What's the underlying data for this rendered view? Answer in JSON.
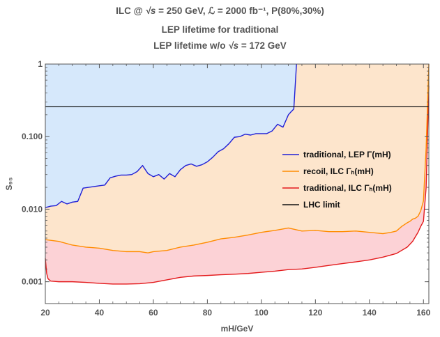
{
  "titles": {
    "line1_a": "ILC @ ",
    "line1_sqrt": "√s",
    "line1_b": " = 250 GeV, ℒ = 2000 fb⁻¹, P(80%,30%)",
    "line2": "LEP lifetime for traditional",
    "line3_a": "LEP lifetime w/o ",
    "line3_sqrt": "√s",
    "line3_b": " = 172 GeV"
  },
  "chart_data": {
    "type": "area",
    "xlabel": "mH/GeV",
    "ylabel": "S₉₅",
    "xlim": [
      20,
      162
    ],
    "ylim": [
      0.0005,
      1
    ],
    "yscale": "log",
    "x_ticks": [
      20,
      40,
      60,
      80,
      100,
      120,
      140,
      160
    ],
    "x_tick_labels": [
      "20",
      "40",
      "60",
      "80",
      "100",
      "120",
      "140",
      "160"
    ],
    "y_ticks": [
      0.001,
      0.01,
      0.1,
      1
    ],
    "y_tick_labels": [
      "0.001",
      "0.010",
      "0.100",
      "1"
    ],
    "legend_position": "right",
    "series": [
      {
        "name": "traditional, LEP Γ(mH)",
        "color": "#1f1fd6",
        "fill": "#d6e8fb",
        "x": [
          20,
          22,
          24,
          26,
          28,
          30,
          32,
          34,
          36,
          38,
          40,
          42,
          44,
          46,
          48,
          50,
          52,
          54,
          56,
          58,
          60,
          62,
          64,
          66,
          68,
          70,
          72,
          74,
          76,
          78,
          80,
          82,
          84,
          86,
          88,
          90,
          92,
          94,
          96,
          98,
          100,
          102,
          104,
          106,
          108,
          110,
          111,
          112,
          113
        ],
        "y": [
          0.0105,
          0.011,
          0.0112,
          0.0128,
          0.0118,
          0.0125,
          0.0128,
          0.0195,
          0.02,
          0.0205,
          0.021,
          0.0215,
          0.027,
          0.0285,
          0.0295,
          0.0295,
          0.03,
          0.033,
          0.04,
          0.031,
          0.028,
          0.03,
          0.026,
          0.031,
          0.028,
          0.035,
          0.04,
          0.042,
          0.039,
          0.041,
          0.045,
          0.052,
          0.062,
          0.068,
          0.08,
          0.098,
          0.1,
          0.108,
          0.105,
          0.11,
          0.11,
          0.11,
          0.12,
          0.148,
          0.135,
          0.2,
          0.22,
          0.24,
          1.0
        ]
      },
      {
        "name": "recoil, ILC Γₕ(mH)",
        "color": "#ff8c00",
        "fill": "#fde5cc",
        "x": [
          20,
          25,
          30,
          35,
          40,
          45,
          50,
          55,
          58,
          60,
          65,
          70,
          75,
          80,
          85,
          90,
          95,
          100,
          105,
          110,
          115,
          120,
          125,
          130,
          135,
          140,
          145,
          148,
          150,
          152,
          154,
          155,
          156,
          157,
          158,
          159,
          160,
          161,
          162
        ],
        "y": [
          0.0038,
          0.0036,
          0.0032,
          0.003,
          0.0029,
          0.0027,
          0.0026,
          0.0026,
          0.0025,
          0.0026,
          0.0027,
          0.003,
          0.0032,
          0.0035,
          0.0039,
          0.0041,
          0.0044,
          0.0048,
          0.0051,
          0.0055,
          0.005,
          0.0051,
          0.0049,
          0.0049,
          0.005,
          0.0048,
          0.0046,
          0.0048,
          0.005,
          0.0058,
          0.0065,
          0.0068,
          0.0073,
          0.0075,
          0.008,
          0.0095,
          0.013,
          0.07,
          1.0
        ]
      },
      {
        "name": "traditional, ILC Γₕ(mH)",
        "color": "#e31a1c",
        "fill": "#fcd2d6",
        "x": [
          20,
          20.5,
          21,
          22,
          25,
          30,
          35,
          40,
          45,
          50,
          55,
          60,
          65,
          70,
          75,
          80,
          85,
          90,
          95,
          100,
          105,
          110,
          115,
          120,
          125,
          130,
          135,
          140,
          145,
          150,
          154,
          156,
          158,
          159,
          160,
          161,
          162
        ],
        "y": [
          0.0021,
          0.0013,
          0.0011,
          0.00102,
          0.001,
          0.001,
          0.00098,
          0.00095,
          0.00093,
          0.00093,
          0.00094,
          0.00098,
          0.00106,
          0.00115,
          0.0012,
          0.00122,
          0.00125,
          0.00127,
          0.0013,
          0.00135,
          0.0014,
          0.00147,
          0.0015,
          0.00158,
          0.00168,
          0.00178,
          0.00188,
          0.002,
          0.00218,
          0.00245,
          0.003,
          0.0036,
          0.0048,
          0.0058,
          0.0068,
          0.02,
          0.5
        ]
      },
      {
        "name": "LHC limit",
        "color": "#111111",
        "x": [
          20,
          162
        ],
        "y": [
          0.26,
          0.26
        ]
      }
    ]
  }
}
